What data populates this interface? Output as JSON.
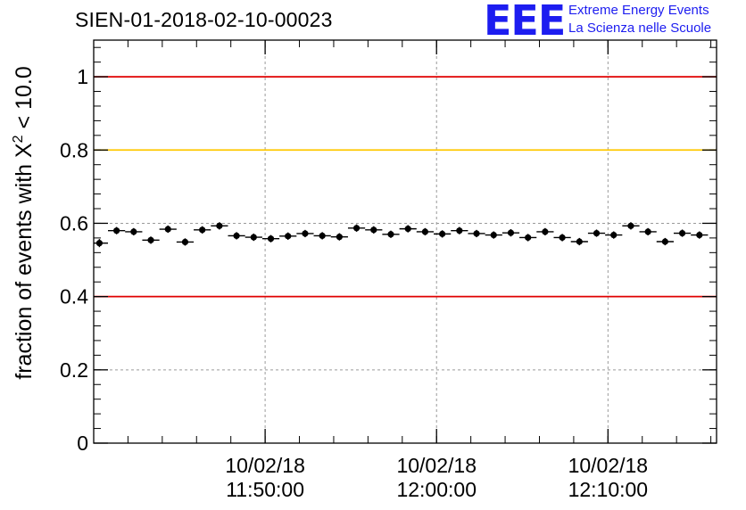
{
  "header": {
    "run_title": "SIEN-01-2018-02-10-00023",
    "logo_mark": "EEE",
    "logo_line1": "Extreme Energy Events",
    "logo_line2": "La Scienza nelle Scuole"
  },
  "colors": {
    "threshold_red": "#e00000",
    "threshold_yellow": "#ffc800",
    "grid": "#9a9a9a",
    "logo_blue": "#1d1df0",
    "marker": "#000000"
  },
  "chart_data": {
    "type": "scatter",
    "title": "SIEN-01-2018-02-10-00023",
    "ylabel": "fraction of events with χ² < 10.0",
    "ylabel_parts": {
      "prefix": "fraction of events with ",
      "symbol": "X",
      "superscript": "2",
      "suffix": " < 10.0"
    },
    "ylim": [
      0,
      1.1
    ],
    "yticks": [
      0,
      0.2,
      0.4,
      0.6,
      0.8,
      1
    ],
    "ytick_labels": [
      "0",
      "0.2",
      "0.4",
      "0.6",
      "0.8",
      "1"
    ],
    "xlim": [
      "2018-02-10 11:40:00",
      "2018-02-10 12:16:20"
    ],
    "xticks": [
      {
        "time": "2018-02-10 11:50:00",
        "date_label": "10/02/18",
        "time_label": "11:50:00"
      },
      {
        "time": "2018-02-10 12:00:00",
        "date_label": "10/02/18",
        "time_label": "12:00:00"
      },
      {
        "time": "2018-02-10 12:10:00",
        "date_label": "10/02/18",
        "time_label": "12:10:00"
      }
    ],
    "minor_tick_step_minutes": 2,
    "bin_width_minutes": 1,
    "grid": true,
    "reference_lines": [
      {
        "y": 1.0,
        "color": "red"
      },
      {
        "y": 0.8,
        "color": "yellow"
      },
      {
        "y": 0.4,
        "color": "red"
      }
    ],
    "series": [
      {
        "x": [
          "2018-02-10 11:40:20",
          "2018-02-10 11:41:20",
          "2018-02-10 11:42:20",
          "2018-02-10 11:43:20",
          "2018-02-10 11:44:20",
          "2018-02-10 11:45:20",
          "2018-02-10 11:46:20",
          "2018-02-10 11:47:20",
          "2018-02-10 11:48:20",
          "2018-02-10 11:49:20",
          "2018-02-10 11:50:20",
          "2018-02-10 11:51:20",
          "2018-02-10 11:52:20",
          "2018-02-10 11:53:20",
          "2018-02-10 11:54:20",
          "2018-02-10 11:55:20",
          "2018-02-10 11:56:20",
          "2018-02-10 11:57:20",
          "2018-02-10 11:58:20",
          "2018-02-10 11:59:20",
          "2018-02-10 12:00:20",
          "2018-02-10 12:01:20",
          "2018-02-10 12:02:20",
          "2018-02-10 12:03:20",
          "2018-02-10 12:04:20",
          "2018-02-10 12:05:20",
          "2018-02-10 12:06:20",
          "2018-02-10 12:07:20",
          "2018-02-10 12:08:20",
          "2018-02-10 12:09:20",
          "2018-02-10 12:10:20",
          "2018-02-10 12:11:20",
          "2018-02-10 12:12:20",
          "2018-02-10 12:13:20",
          "2018-02-10 12:14:20",
          "2018-02-10 12:15:20"
        ],
        "values": [
          0.546,
          0.58,
          0.577,
          0.554,
          0.584,
          0.549,
          0.582,
          0.593,
          0.566,
          0.562,
          0.558,
          0.565,
          0.572,
          0.566,
          0.563,
          0.587,
          0.582,
          0.57,
          0.585,
          0.577,
          0.571,
          0.58,
          0.572,
          0.568,
          0.574,
          0.561,
          0.577,
          0.561,
          0.55,
          0.573,
          0.568,
          0.593,
          0.577,
          0.55,
          0.573,
          0.568
        ],
        "errors": [
          0.011,
          0.01,
          0.01,
          0.01,
          0.01,
          0.01,
          0.01,
          0.01,
          0.01,
          0.01,
          0.01,
          0.01,
          0.01,
          0.01,
          0.01,
          0.01,
          0.01,
          0.01,
          0.01,
          0.01,
          0.01,
          0.01,
          0.01,
          0.01,
          0.01,
          0.01,
          0.01,
          0.01,
          0.01,
          0.01,
          0.01,
          0.01,
          0.01,
          0.01,
          0.01,
          0.01
        ]
      }
    ]
  }
}
